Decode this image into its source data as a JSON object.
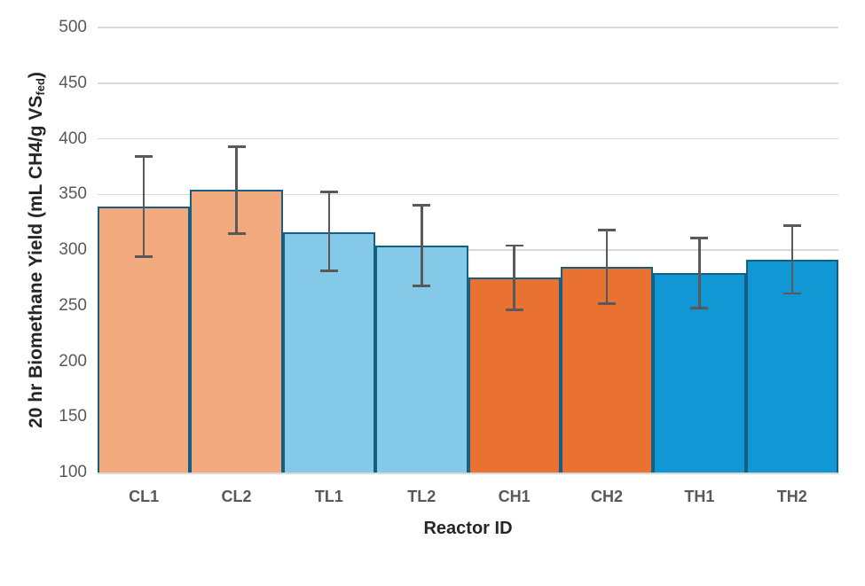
{
  "chart_data": {
    "type": "bar",
    "title": "",
    "xlabel": "Reactor ID",
    "ylabel_main": "20 hr Biomethane Yield  (mL CH4/g VS",
    "ylabel_sub": "fed",
    "ylabel_close": ")",
    "categories": [
      "CL1",
      "CL2",
      "TL1",
      "TL2",
      "CH1",
      "CH2",
      "TH1",
      "TH2"
    ],
    "values": [
      339,
      354,
      316,
      304,
      275,
      285,
      279,
      291
    ],
    "error_top": [
      384,
      393,
      352,
      340,
      304,
      318,
      311,
      322
    ],
    "error_bottom": [
      294,
      315,
      281,
      268,
      246,
      252,
      248,
      261
    ],
    "ylim": [
      100,
      500
    ],
    "yticks": [
      100,
      150,
      200,
      250,
      300,
      350,
      400,
      450,
      500
    ],
    "grid": "horizontal",
    "legend": "none",
    "bar_fills": [
      "#F3A97E",
      "#F3A97E",
      "#85C9E9",
      "#85C9E9",
      "#E97132",
      "#E97132",
      "#1198D4",
      "#1198D4"
    ],
    "bar_border_color": "#156082",
    "error_bar_color": "#595959",
    "gridline_color": "#D9D9D9",
    "axis_line_color": "#D9D9D9",
    "tick_label_color": "#595959",
    "axis_title_color": "#262626"
  }
}
